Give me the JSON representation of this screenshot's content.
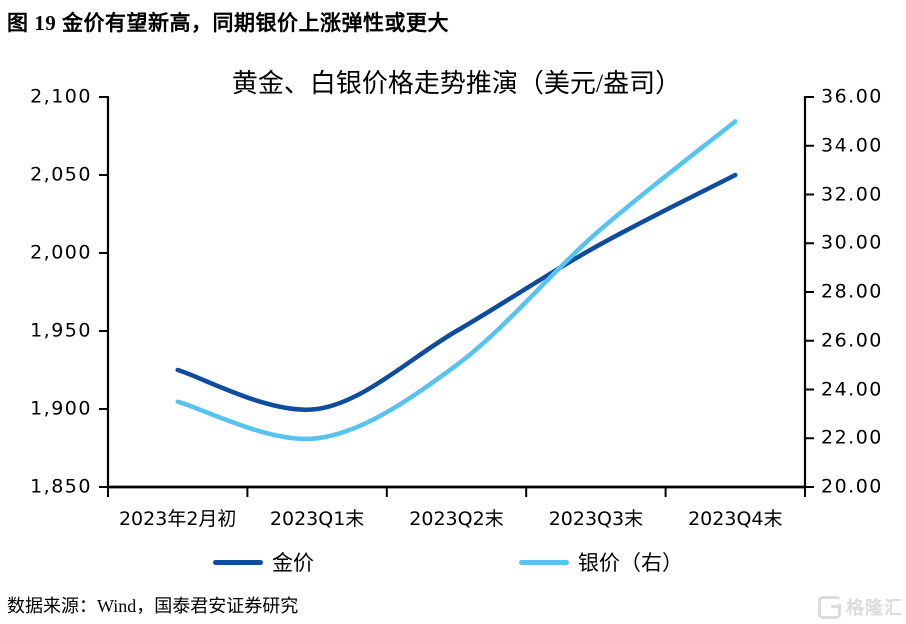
{
  "figure_title": "图 19 金价有望新高，同期银价上涨弹性或更大",
  "chart_data": {
    "type": "line",
    "title": "黄金、白银价格走势推演（美元/盎司）",
    "categories": [
      "2023年2月初",
      "2023Q1末",
      "2023Q2末",
      "2023Q3末",
      "2023Q4末"
    ],
    "series": [
      {
        "key": "gold",
        "name": "金价",
        "axis": "left",
        "color": "#0E4C9E",
        "values": [
          1925,
          1900,
          1950,
          2004,
          2050
        ]
      },
      {
        "key": "silver",
        "name": "银价（右）",
        "axis": "right",
        "color": "#57C3F1",
        "values": [
          23.5,
          22,
          25,
          30.4,
          35
        ]
      }
    ],
    "left_axis": {
      "min": 1850,
      "max": 2100,
      "tick_step": 50,
      "ticks": [
        "2,100",
        "2,050",
        "2,000",
        "1,950",
        "1,900",
        "1,850"
      ]
    },
    "right_axis": {
      "min": 20,
      "max": 36,
      "tick_step": 2,
      "ticks": [
        "36.00",
        "34.00",
        "32.00",
        "30.00",
        "28.00",
        "26.00",
        "24.00",
        "22.00",
        "20.00"
      ]
    },
    "grid": false,
    "legend_position": "bottom",
    "line_smoothing": true
  },
  "source_note": "数据来源：Wind，国泰君安证券研究",
  "watermark": {
    "icon": "gelonghui-g-icon",
    "text": "格隆汇"
  }
}
